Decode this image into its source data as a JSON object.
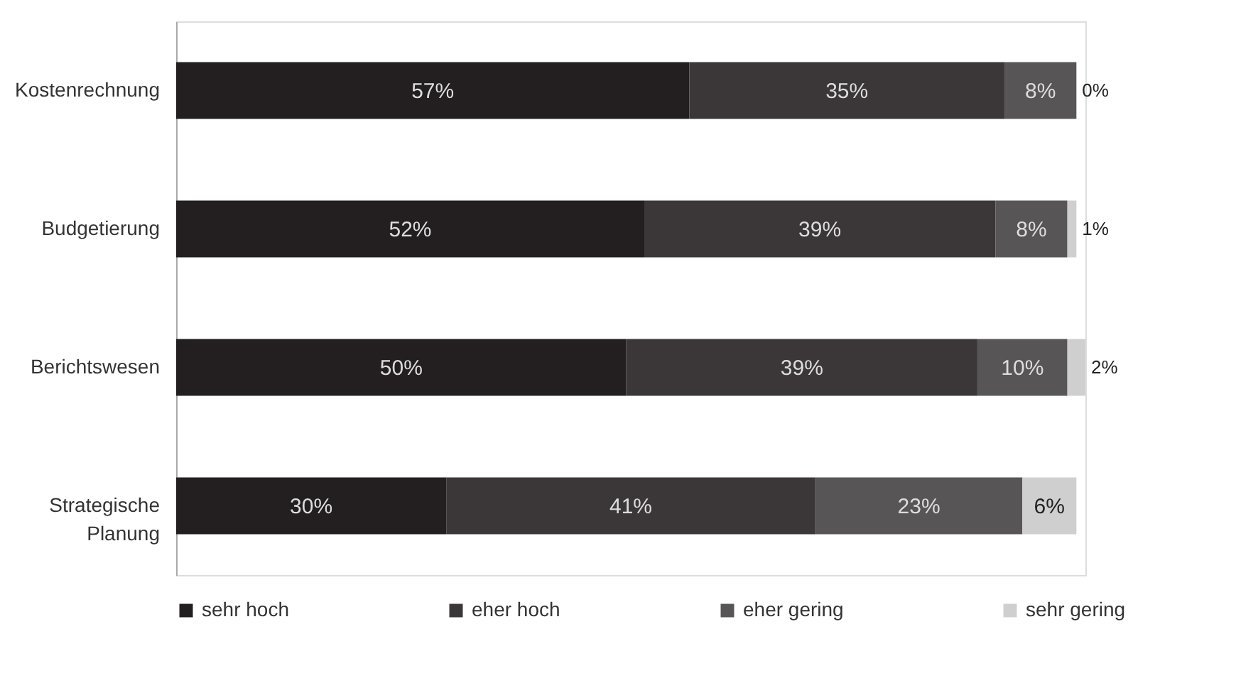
{
  "chart_data": {
    "type": "bar",
    "orientation": "horizontal",
    "stacked": true,
    "legend": "bottom",
    "grid": false,
    "tick_labels": "y",
    "categories": [
      "Kostenrechnung",
      "Budgetierung",
      "Berichtswesen",
      "Strategische Planung"
    ],
    "series": [
      {
        "name": "sehr hoch",
        "color": "#231f20",
        "values": [
          57,
          52,
          50,
          30
        ],
        "value_labels": [
          "57%",
          "52%",
          "50%",
          "30%"
        ]
      },
      {
        "name": "eher hoch",
        "color": "#3b3637",
        "values": [
          35,
          39,
          39,
          41
        ],
        "value_labels": [
          "35%",
          "39%",
          "39%",
          "41%"
        ]
      },
      {
        "name": "eher gering",
        "color": "#575556",
        "values": [
          8,
          8,
          10,
          23
        ],
        "value_labels": [
          "8%",
          "8%",
          "10%",
          "23%"
        ]
      },
      {
        "name": "sehr gering",
        "color": "#cfcfcf",
        "values": [
          0,
          1,
          2,
          6
        ],
        "value_labels": [
          "0%",
          "1%",
          "2%",
          "6%"
        ]
      }
    ]
  }
}
